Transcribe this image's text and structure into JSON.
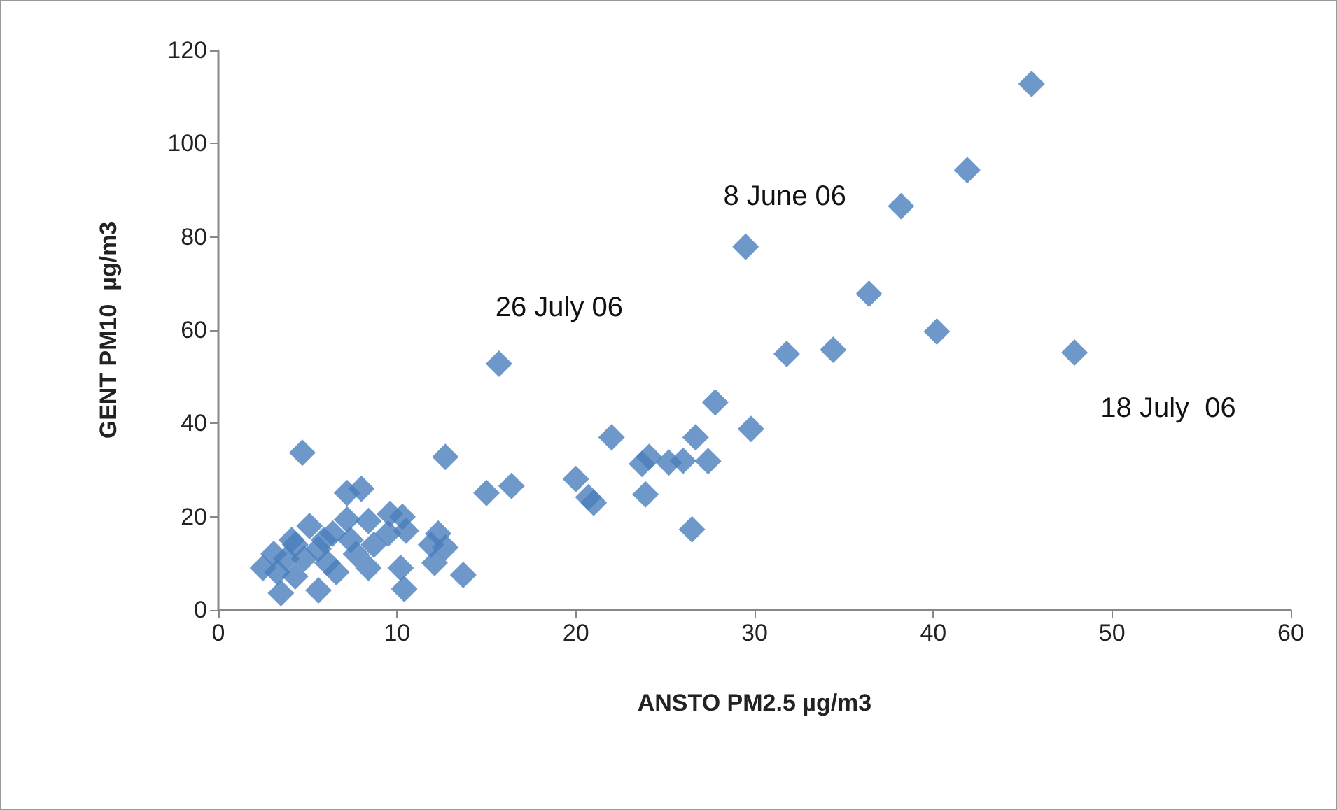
{
  "chart_data": {
    "type": "scatter",
    "xlabel": "ANSTO PM2.5 µg/m3",
    "ylabel": "GENT PM10  µg/m3",
    "x": [
      45.5,
      41.9,
      38.2,
      29.5,
      36.4,
      40.2,
      47.9,
      31.8,
      34.4,
      15.7,
      27.8,
      29.8,
      22.0,
      26.7,
      24.1,
      23.7,
      25.2,
      26.0,
      27.4,
      23.9,
      26.5,
      20.0,
      20.7,
      21.0,
      4.7,
      12.7,
      15.0,
      16.4,
      7.2,
      8.0,
      10.3,
      9.6,
      10.5,
      9.5,
      12.3,
      11.9,
      12.7,
      12.1,
      10.2,
      13.7,
      10.4,
      8.4,
      7.7,
      3.5,
      5.6,
      2.5,
      3.1,
      4.1,
      5.1,
      6.4,
      7.2,
      7.4,
      8.4,
      8.7,
      4.8,
      6.1,
      6.6,
      4.3,
      3.8,
      5.6,
      4.3,
      5.9,
      3.3
    ],
    "values": [
      112.8,
      94.3,
      86.6,
      77.9,
      67.8,
      59.7,
      55.2,
      54.9,
      55.8,
      52.8,
      44.5,
      38.8,
      37.0,
      37.0,
      32.8,
      31.3,
      31.6,
      32.0,
      31.9,
      24.8,
      17.3,
      28.1,
      24.2,
      23.0,
      33.7,
      32.8,
      25.1,
      26.6,
      25.1,
      26.0,
      20.0,
      20.6,
      17.0,
      16.4,
      16.4,
      14.0,
      13.4,
      10.1,
      9.0,
      7.5,
      4.5,
      9.0,
      12.0,
      3.6,
      4.2,
      9.0,
      12.0,
      15.0,
      18.0,
      16.4,
      19.4,
      15.0,
      19.1,
      14.0,
      11.0,
      10.1,
      8.1,
      7.2,
      11.0,
      13.1,
      14.0,
      15.0,
      8.1
    ],
    "color": "#4a7ebb",
    "marker": "diamond",
    "grid": false,
    "xlim": [
      0,
      60
    ],
    "xticks": [
      0,
      10,
      20,
      30,
      40,
      50,
      60
    ],
    "ylim": [
      0,
      120
    ],
    "yticks": [
      0,
      20,
      40,
      60,
      80,
      100,
      120
    ],
    "annotations": [
      {
        "text": "26 July 06",
        "x": 15.7,
        "y": 52.8
      },
      {
        "text": "8 June 06",
        "x": 29.5,
        "y": 77.9
      },
      {
        "text": "18 July  06",
        "x": 47.9,
        "y": 55.2
      }
    ]
  }
}
